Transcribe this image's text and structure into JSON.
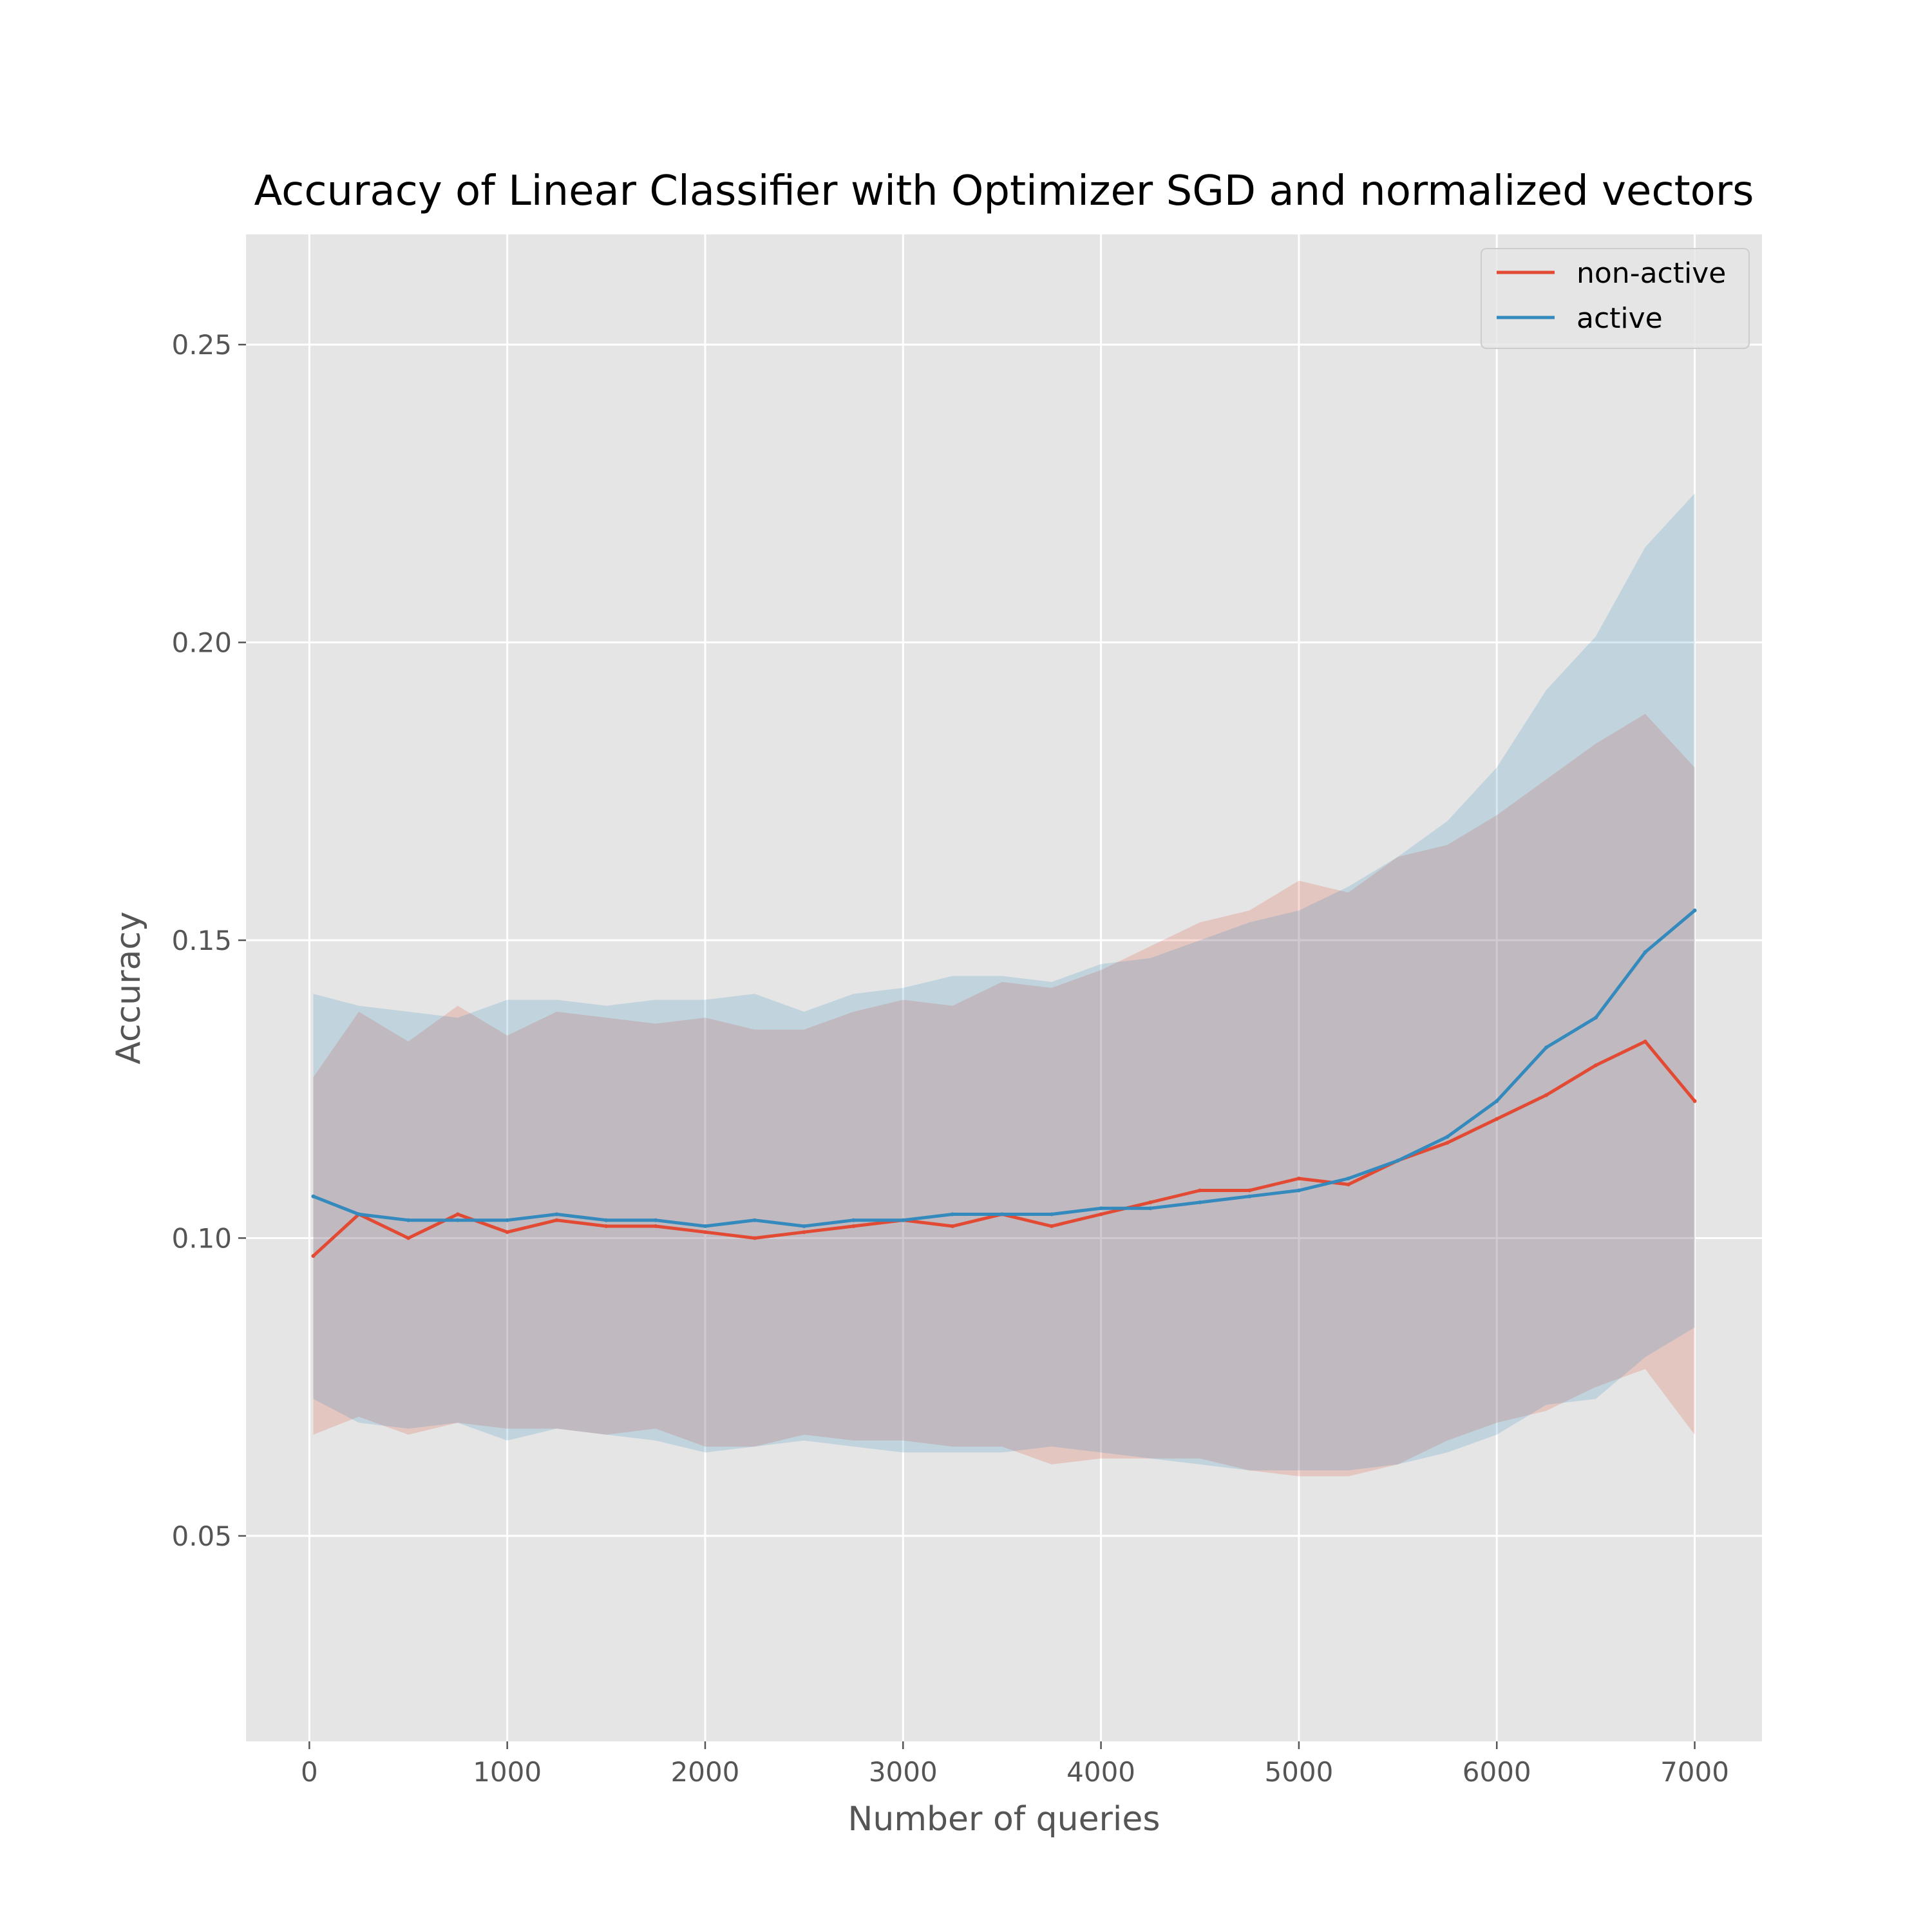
{
  "chart_data": {
    "type": "line",
    "title": "Accuracy of Linear Classifier with Optimizer SGD and normalized vectors",
    "xlabel": "Number of queries",
    "ylabel": "Accuracy",
    "xlim": [
      -320,
      7340
    ],
    "ylim": [
      0.0155,
      0.2685
    ],
    "xticks": [
      0,
      1000,
      2000,
      3000,
      4000,
      5000,
      6000,
      7000
    ],
    "yticks": [
      0.05,
      0.1,
      0.15,
      0.2,
      0.25
    ],
    "xtick_labels": [
      "0",
      "1000",
      "2000",
      "3000",
      "4000",
      "5000",
      "6000",
      "7000"
    ],
    "ytick_labels": [
      "0.05",
      "0.10",
      "0.15",
      "0.20",
      "0.25"
    ],
    "grid": true,
    "legend_position": "upper right",
    "x": [
      20,
      250,
      500,
      750,
      1000,
      1250,
      1500,
      1750,
      2000,
      2250,
      2500,
      2750,
      3000,
      3250,
      3500,
      3750,
      4000,
      4250,
      4500,
      4750,
      5000,
      5250,
      5500,
      5750,
      6000,
      6250,
      6500,
      6750,
      7000
    ],
    "series": [
      {
        "name": "non-active",
        "color": "#E24A33",
        "values": [
          0.097,
          0.104,
          0.1,
          0.104,
          0.101,
          0.103,
          0.102,
          0.102,
          0.101,
          0.1,
          0.101,
          0.102,
          0.103,
          0.102,
          0.104,
          0.102,
          0.104,
          0.106,
          0.108,
          0.108,
          0.11,
          0.109,
          0.113,
          0.116,
          0.12,
          0.124,
          0.129,
          0.133,
          0.123
        ],
        "spread": [
          0.03,
          0.034,
          0.033,
          0.035,
          0.033,
          0.035,
          0.035,
          0.034,
          0.036,
          0.035,
          0.034,
          0.036,
          0.037,
          0.037,
          0.039,
          0.04,
          0.041,
          0.043,
          0.045,
          0.047,
          0.05,
          0.049,
          0.051,
          0.05,
          0.051,
          0.053,
          0.054,
          0.055,
          0.056
        ]
      },
      {
        "name": "active",
        "color": "#348ABD",
        "values": [
          0.107,
          0.104,
          0.103,
          0.103,
          0.103,
          0.104,
          0.103,
          0.103,
          0.102,
          0.103,
          0.102,
          0.103,
          0.103,
          0.104,
          0.104,
          0.104,
          0.105,
          0.105,
          0.106,
          0.107,
          0.108,
          0.11,
          0.113,
          0.117,
          0.123,
          0.132,
          0.137,
          0.148,
          0.155
        ],
        "spread": [
          0.034,
          0.035,
          0.035,
          0.034,
          0.037,
          0.036,
          0.036,
          0.037,
          0.038,
          0.038,
          0.036,
          0.038,
          0.039,
          0.04,
          0.04,
          0.039,
          0.041,
          0.042,
          0.044,
          0.046,
          0.047,
          0.049,
          0.051,
          0.053,
          0.056,
          0.06,
          0.064,
          0.068,
          0.07
        ]
      }
    ]
  }
}
